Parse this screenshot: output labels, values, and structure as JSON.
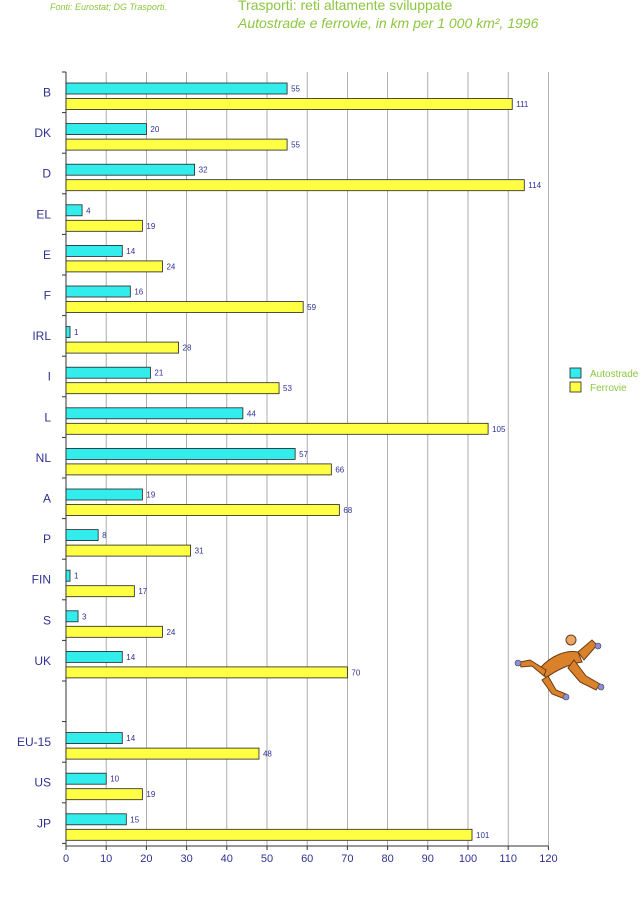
{
  "source": "Fonti: Eurostat; DG Trasporti.",
  "title": "Trasporti: reti altamente sviluppate",
  "subtitle": "Autostrade e ferrovie, in km per 1 000 km², 1996",
  "colors": {
    "text": "#2e3192",
    "green": "#8cc63f",
    "series1": "#33ecec",
    "series2": "#ffff44",
    "grid": "#9a9a9a"
  },
  "chart_data": {
    "type": "bar",
    "orientation": "horizontal",
    "categories": [
      "B",
      "DK",
      "D",
      "EL",
      "E",
      "F",
      "IRL",
      "I",
      "L",
      "NL",
      "A",
      "P",
      "FIN",
      "S",
      "UK",
      "",
      "EU-15",
      "US",
      "JP"
    ],
    "series": [
      {
        "name": "Autostrade",
        "values": [
          55,
          20,
          32,
          4,
          14,
          16,
          1,
          21,
          44,
          57,
          19,
          8,
          1,
          3,
          14,
          null,
          14,
          10,
          15
        ]
      },
      {
        "name": "Ferrovie",
        "values": [
          111,
          55,
          114,
          19,
          24,
          59,
          28,
          53,
          105,
          66,
          68,
          31,
          17,
          24,
          70,
          null,
          48,
          19,
          101
        ]
      }
    ],
    "xlim": [
      0,
      120
    ],
    "xticks": [
      0,
      10,
      20,
      30,
      40,
      50,
      60,
      70,
      80,
      90,
      100,
      110,
      120
    ],
    "grid": "vertical",
    "legend": "right"
  }
}
